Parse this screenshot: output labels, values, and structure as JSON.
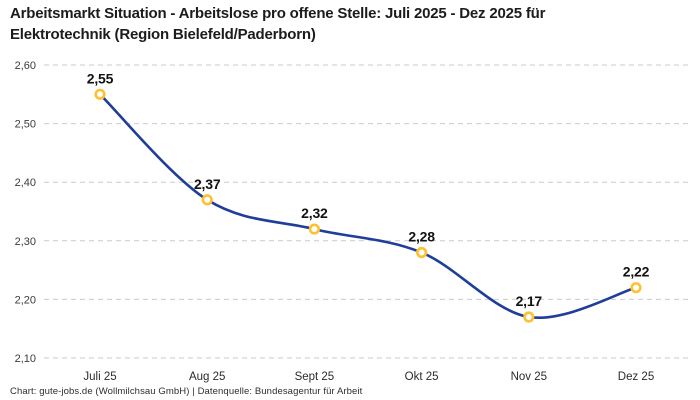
{
  "header": {
    "title": "Arbeitsmarkt Situation - Arbeitslose pro offene Stelle: Juli 2025 - Dez 2025 für Elektrotechnik (Region Bielefeld/Paderborn)"
  },
  "footer": {
    "credit": "Chart: gute-jobs.de (Wollmilchsau GmbH) | Datenquelle: Bundesagentur für Arbeit"
  },
  "chart_data": {
    "type": "line",
    "title": "Arbeitsmarkt Situation - Arbeitslose pro offene Stelle: Juli 2025 - Dez 2025 für Elektrotechnik (Region Bielefeld/Paderborn)",
    "categories": [
      "Juli 25",
      "Aug 25",
      "Sept 25",
      "Okt 25",
      "Nov 25",
      "Dez 25"
    ],
    "values": [
      2.55,
      2.37,
      2.32,
      2.28,
      2.17,
      2.22
    ],
    "value_labels": [
      "2,55",
      "2,37",
      "2,32",
      "2,28",
      "2,17",
      "2,22"
    ],
    "xlabel": "",
    "ylabel": "",
    "ylim": [
      2.1,
      2.6
    ],
    "yticks": [
      {
        "value": 2.6,
        "label": "2,60"
      },
      {
        "value": 2.5,
        "label": "2,50"
      },
      {
        "value": 2.4,
        "label": "2,40"
      },
      {
        "value": 2.3,
        "label": "2,30"
      },
      {
        "value": 2.2,
        "label": "2,20"
      },
      {
        "value": 2.1,
        "label": "2,10"
      }
    ],
    "grid": "horizontal-dashed",
    "legend": "none",
    "colors": {
      "line": "#1f3d99",
      "marker_ring": "#fdc131",
      "marker_fill": "#ffffff",
      "gridline": "#cbcbcb",
      "value_label": "#121212"
    }
  }
}
